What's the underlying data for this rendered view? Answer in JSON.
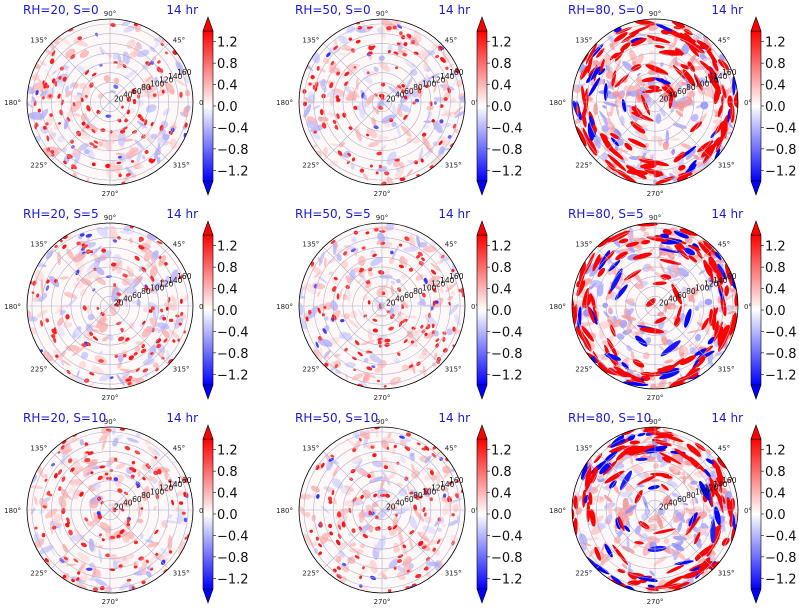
{
  "figure": {
    "time_label": "14 hr",
    "colormap": {
      "low": "#0000ff",
      "mid": "#ffffff",
      "high": "#ff0000"
    }
  },
  "chart_data": {
    "type": "heatmap",
    "projection": "polar",
    "angle_ticks": [
      "0°",
      "45°",
      "90°",
      "135°",
      "180°",
      "225°",
      "270°",
      "315°"
    ],
    "radial_ticks": [
      "20",
      "40",
      "60",
      "80",
      "100",
      "120",
      "140",
      "160"
    ],
    "rlim": [
      0,
      170
    ],
    "clim": [
      -1.4,
      1.4
    ],
    "colorbar_ticks": [
      "1.2",
      "0.8",
      "0.4",
      "0.0",
      "−0.4",
      "−0.8",
      "−1.2"
    ],
    "colorbar_tick_values": [
      1.2,
      0.8,
      0.4,
      0.0,
      -0.4,
      -0.8,
      -1.2
    ],
    "panels": [
      {
        "title": "RH=20, S=0",
        "time": "14 hr",
        "rh": 20,
        "s": 0
      },
      {
        "title": "RH=50, S=0",
        "time": "14 hr",
        "rh": 50,
        "s": 0
      },
      {
        "title": "RH=80, S=0",
        "time": "14 hr",
        "rh": 80,
        "s": 0
      },
      {
        "title": "RH=20, S=5",
        "time": "14 hr",
        "rh": 20,
        "s": 5
      },
      {
        "title": "RH=50, S=5",
        "time": "14 hr",
        "rh": 50,
        "s": 5
      },
      {
        "title": "RH=80, S=5",
        "time": "14 hr",
        "rh": 80,
        "s": 5
      },
      {
        "title": "RH=20, S=10",
        "time": "14 hr",
        "rh": 20,
        "s": 10
      },
      {
        "title": "RH=50, S=10",
        "time": "14 hr",
        "rh": 50,
        "s": 10
      },
      {
        "title": "RH=80, S=10",
        "time": "14 hr",
        "rh": 80,
        "s": 10
      }
    ]
  }
}
